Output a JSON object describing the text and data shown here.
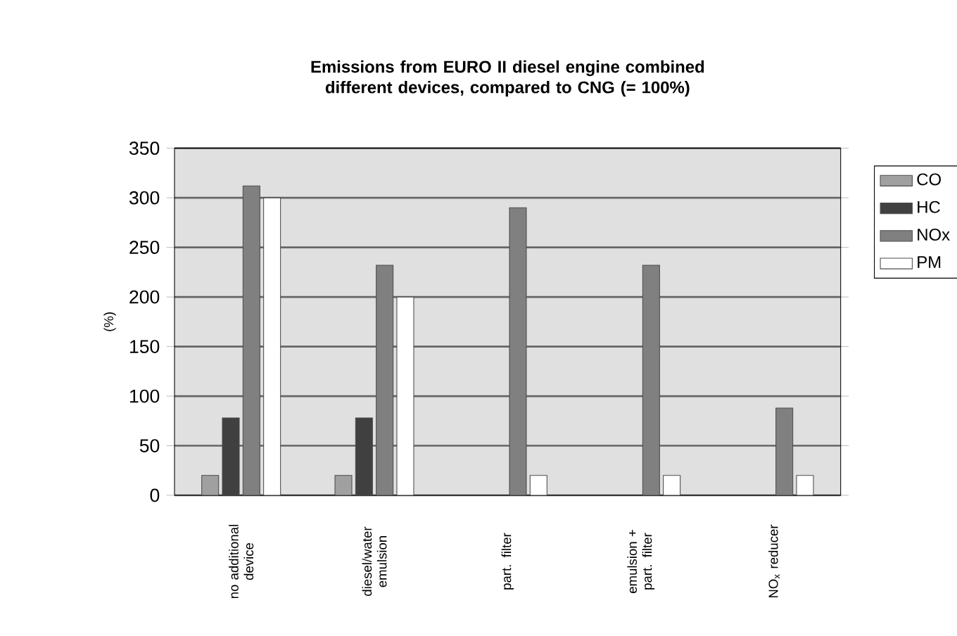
{
  "chart_data": {
    "type": "bar",
    "title": "Emissions from EURO II diesel engine combined different devices, compared to CNG (= 100%)",
    "ylabel": "(%)",
    "categories": [
      "no additional device",
      "diesel/water emulsion",
      "part. filter",
      "emulsion + part. filter",
      "NO$_{x}$ reducer"
    ],
    "series": [
      {
        "name": "CO",
        "color": "#a0a0a0",
        "values": [
          20,
          20,
          null,
          null,
          null
        ]
      },
      {
        "name": "HC",
        "color": "#404040",
        "values": [
          78,
          78,
          null,
          null,
          null
        ]
      },
      {
        "name": "NOx",
        "color": "#808080",
        "values": [
          312,
          232,
          290,
          232,
          88
        ]
      },
      {
        "name": "PM",
        "color": "#ffffff",
        "values": [
          300,
          200,
          20,
          20,
          20
        ]
      }
    ],
    "ylim": [
      0,
      350
    ],
    "yticks": [
      0,
      50,
      100,
      150,
      200,
      250,
      300,
      350
    ],
    "grid": "y",
    "legend": "right"
  }
}
